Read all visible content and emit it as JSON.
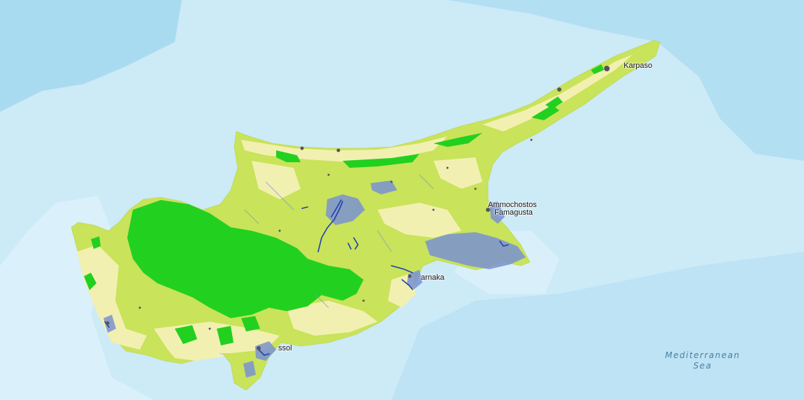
{
  "map": {
    "place_labels": {
      "karpaso": "Karpaso",
      "ammochostos": "Ammochostos",
      "famagusta": "Famagusta",
      "larnaka": "arnaka",
      "lemesos": "ssol"
    },
    "sea_label": {
      "line1": "Mediterranean",
      "line2": "Sea"
    },
    "colors": {
      "sea_shallow": "#cdeaf7",
      "sea_mid": "#bde3f4",
      "sea_deep": "#a9dbf0",
      "land_agriculture": "#c9e35a",
      "land_pasture": "#f2f0b0",
      "forest": "#22d020",
      "wetland": "#7a92d2",
      "river": "#1f3fb0",
      "urban": "#555555"
    }
  }
}
